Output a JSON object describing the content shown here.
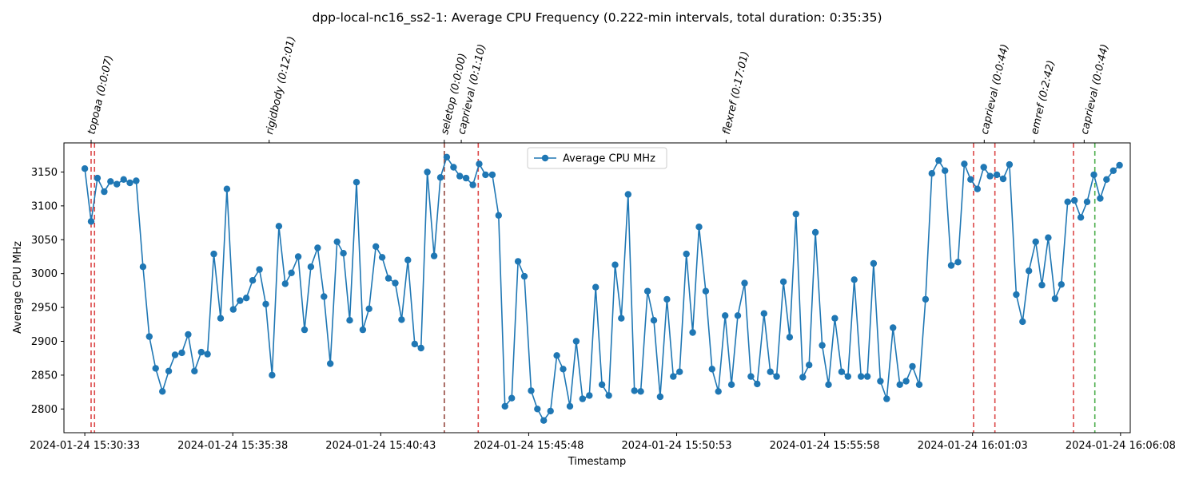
{
  "chart_data": {
    "type": "line",
    "title": "dpp-local-nc16_ss2-1: Average CPU Frequency (0.222-min intervals, total duration: 0:35:35)",
    "xlabel": "Timestamp",
    "ylabel": "Average CPU MHz",
    "x_range": [
      "2024-01-24 15:29:50",
      "2024-01-24 16:06:28"
    ],
    "ylim": [
      2765,
      3193
    ],
    "y_ticks": [
      2800,
      2850,
      2900,
      2950,
      3000,
      3050,
      3100,
      3150
    ],
    "x_ticks": [
      "2024-01-24 15:30:33",
      "2024-01-24 15:35:38",
      "2024-01-24 15:40:43",
      "2024-01-24 15:45:48",
      "2024-01-24 15:50:53",
      "2024-01-24 15:55:58",
      "2024-01-24 16:01:03",
      "2024-01-24 16:06:08"
    ],
    "legend": {
      "entries": [
        "Average CPU MHz"
      ],
      "placement": "upper-center"
    },
    "series": [
      {
        "name": "Average CPU MHz",
        "color": "#1f77b4",
        "points": [
          [
            "2024-01-24 15:30:33",
            3155
          ],
          [
            "2024-01-24 15:30:46",
            3077
          ],
          [
            "2024-01-24 15:30:59",
            3141
          ],
          [
            "2024-01-24 15:31:13",
            3121
          ],
          [
            "2024-01-24 15:31:26",
            3136
          ],
          [
            "2024-01-24 15:31:39",
            3132
          ],
          [
            "2024-01-24 15:31:53",
            3139
          ],
          [
            "2024-01-24 15:32:06",
            3134
          ],
          [
            "2024-01-24 15:32:19",
            3137
          ],
          [
            "2024-01-24 15:32:33",
            3010
          ],
          [
            "2024-01-24 15:32:46",
            2907
          ],
          [
            "2024-01-24 15:32:59",
            2860
          ],
          [
            "2024-01-24 15:33:13",
            2826
          ],
          [
            "2024-01-24 15:33:26",
            2856
          ],
          [
            "2024-01-24 15:33:39",
            2880
          ],
          [
            "2024-01-24 15:33:53",
            2883
          ],
          [
            "2024-01-24 15:34:06",
            2910
          ],
          [
            "2024-01-24 15:34:19",
            2856
          ],
          [
            "2024-01-24 15:34:33",
            2884
          ],
          [
            "2024-01-24 15:34:46",
            2881
          ],
          [
            "2024-01-24 15:34:59",
            3029
          ],
          [
            "2024-01-24 15:35:13",
            2934
          ],
          [
            "2024-01-24 15:35:26",
            3125
          ],
          [
            "2024-01-24 15:35:39",
            2947
          ],
          [
            "2024-01-24 15:35:53",
            2960
          ],
          [
            "2024-01-24 15:36:06",
            2964
          ],
          [
            "2024-01-24 15:36:19",
            2990
          ],
          [
            "2024-01-24 15:36:33",
            3006
          ],
          [
            "2024-01-24 15:36:46",
            2955
          ],
          [
            "2024-01-24 15:36:59",
            2850
          ],
          [
            "2024-01-24 15:37:13",
            3070
          ],
          [
            "2024-01-24 15:37:26",
            2985
          ],
          [
            "2024-01-24 15:37:39",
            3001
          ],
          [
            "2024-01-24 15:37:53",
            3025
          ],
          [
            "2024-01-24 15:38:06",
            2917
          ],
          [
            "2024-01-24 15:38:19",
            3010
          ],
          [
            "2024-01-24 15:38:33",
            3038
          ],
          [
            "2024-01-24 15:38:46",
            2966
          ],
          [
            "2024-01-24 15:38:59",
            2867
          ],
          [
            "2024-01-24 15:39:13",
            3047
          ],
          [
            "2024-01-24 15:39:26",
            3030
          ],
          [
            "2024-01-24 15:39:39",
            2931
          ],
          [
            "2024-01-24 15:39:53",
            3135
          ],
          [
            "2024-01-24 15:40:06",
            2917
          ],
          [
            "2024-01-24 15:40:19",
            2948
          ],
          [
            "2024-01-24 15:40:33",
            3040
          ],
          [
            "2024-01-24 15:40:46",
            3024
          ],
          [
            "2024-01-24 15:40:59",
            2993
          ],
          [
            "2024-01-24 15:41:13",
            2986
          ],
          [
            "2024-01-24 15:41:26",
            2932
          ],
          [
            "2024-01-24 15:41:39",
            3020
          ],
          [
            "2024-01-24 15:41:53",
            2896
          ],
          [
            "2024-01-24 15:42:06",
            2890
          ],
          [
            "2024-01-24 15:42:19",
            3150
          ],
          [
            "2024-01-24 15:42:33",
            3026
          ],
          [
            "2024-01-24 15:42:46",
            3142
          ],
          [
            "2024-01-24 15:42:59",
            3172
          ],
          [
            "2024-01-24 15:43:13",
            3157
          ],
          [
            "2024-01-24 15:43:26",
            3144
          ],
          [
            "2024-01-24 15:43:39",
            3141
          ],
          [
            "2024-01-24 15:43:53",
            3131
          ],
          [
            "2024-01-24 15:44:06",
            3162
          ],
          [
            "2024-01-24 15:44:19",
            3146
          ],
          [
            "2024-01-24 15:44:33",
            3146
          ],
          [
            "2024-01-24 15:44:46",
            3086
          ],
          [
            "2024-01-24 15:44:59",
            2804
          ],
          [
            "2024-01-24 15:45:13",
            2816
          ],
          [
            "2024-01-24 15:45:26",
            3018
          ],
          [
            "2024-01-24 15:45:39",
            2996
          ],
          [
            "2024-01-24 15:45:53",
            2827
          ],
          [
            "2024-01-24 15:46:06",
            2800
          ],
          [
            "2024-01-24 15:46:19",
            2783
          ],
          [
            "2024-01-24 15:46:33",
            2797
          ],
          [
            "2024-01-24 15:46:46",
            2879
          ],
          [
            "2024-01-24 15:46:59",
            2859
          ],
          [
            "2024-01-24 15:47:13",
            2804
          ],
          [
            "2024-01-24 15:47:26",
            2900
          ],
          [
            "2024-01-24 15:47:39",
            2815
          ],
          [
            "2024-01-24 15:47:53",
            2820
          ],
          [
            "2024-01-24 15:48:06",
            2980
          ],
          [
            "2024-01-24 15:48:19",
            2836
          ],
          [
            "2024-01-24 15:48:33",
            2820
          ],
          [
            "2024-01-24 15:48:46",
            3013
          ],
          [
            "2024-01-24 15:48:59",
            2934
          ],
          [
            "2024-01-24 15:49:13",
            3117
          ],
          [
            "2024-01-24 15:49:26",
            2827
          ],
          [
            "2024-01-24 15:49:39",
            2826
          ],
          [
            "2024-01-24 15:49:53",
            2974
          ],
          [
            "2024-01-24 15:50:06",
            2931
          ],
          [
            "2024-01-24 15:50:19",
            2818
          ],
          [
            "2024-01-24 15:50:33",
            2962
          ],
          [
            "2024-01-24 15:50:46",
            2848
          ],
          [
            "2024-01-24 15:50:59",
            2855
          ],
          [
            "2024-01-24 15:51:13",
            3029
          ],
          [
            "2024-01-24 15:51:26",
            2913
          ],
          [
            "2024-01-24 15:51:39",
            3069
          ],
          [
            "2024-01-24 15:51:53",
            2974
          ],
          [
            "2024-01-24 15:52:06",
            2859
          ],
          [
            "2024-01-24 15:52:19",
            2826
          ],
          [
            "2024-01-24 15:52:33",
            2938
          ],
          [
            "2024-01-24 15:52:46",
            2836
          ],
          [
            "2024-01-24 15:52:59",
            2938
          ],
          [
            "2024-01-24 15:53:13",
            2986
          ],
          [
            "2024-01-24 15:53:26",
            2848
          ],
          [
            "2024-01-24 15:53:39",
            2837
          ],
          [
            "2024-01-24 15:53:53",
            2941
          ],
          [
            "2024-01-24 15:54:06",
            2855
          ],
          [
            "2024-01-24 15:54:19",
            2848
          ],
          [
            "2024-01-24 15:54:33",
            2988
          ],
          [
            "2024-01-24 15:54:46",
            2906
          ],
          [
            "2024-01-24 15:54:59",
            3088
          ],
          [
            "2024-01-24 15:55:13",
            2847
          ],
          [
            "2024-01-24 15:55:26",
            2865
          ],
          [
            "2024-01-24 15:55:39",
            3061
          ],
          [
            "2024-01-24 15:55:53",
            2894
          ],
          [
            "2024-01-24 15:56:06",
            2836
          ],
          [
            "2024-01-24 15:56:19",
            2934
          ],
          [
            "2024-01-24 15:56:33",
            2855
          ],
          [
            "2024-01-24 15:56:46",
            2848
          ],
          [
            "2024-01-24 15:56:59",
            2991
          ],
          [
            "2024-01-24 15:57:13",
            2848
          ],
          [
            "2024-01-24 15:57:26",
            2848
          ],
          [
            "2024-01-24 15:57:39",
            3015
          ],
          [
            "2024-01-24 15:57:53",
            2841
          ],
          [
            "2024-01-24 15:58:06",
            2815
          ],
          [
            "2024-01-24 15:58:19",
            2920
          ],
          [
            "2024-01-24 15:58:33",
            2836
          ],
          [
            "2024-01-24 15:58:46",
            2841
          ],
          [
            "2024-01-24 15:58:59",
            2863
          ],
          [
            "2024-01-24 15:59:13",
            2836
          ],
          [
            "2024-01-24 15:59:26",
            2962
          ],
          [
            "2024-01-24 15:59:39",
            3148
          ],
          [
            "2024-01-24 15:59:53",
            3167
          ],
          [
            "2024-01-24 16:00:06",
            3152
          ],
          [
            "2024-01-24 16:00:19",
            3012
          ],
          [
            "2024-01-24 16:00:33",
            3017
          ],
          [
            "2024-01-24 16:00:46",
            3162
          ],
          [
            "2024-01-24 16:00:59",
            3139
          ],
          [
            "2024-01-24 16:01:13",
            3125
          ],
          [
            "2024-01-24 16:01:26",
            3157
          ],
          [
            "2024-01-24 16:01:39",
            3144
          ],
          [
            "2024-01-24 16:01:53",
            3146
          ],
          [
            "2024-01-24 16:02:06",
            3140
          ],
          [
            "2024-01-24 16:02:19",
            3161
          ],
          [
            "2024-01-24 16:02:33",
            2969
          ],
          [
            "2024-01-24 16:02:46",
            2929
          ],
          [
            "2024-01-24 16:02:59",
            3004
          ],
          [
            "2024-01-24 16:03:13",
            3047
          ],
          [
            "2024-01-24 16:03:26",
            2983
          ],
          [
            "2024-01-24 16:03:39",
            3053
          ],
          [
            "2024-01-24 16:03:53",
            2963
          ],
          [
            "2024-01-24 16:04:06",
            2984
          ],
          [
            "2024-01-24 16:04:19",
            3106
          ],
          [
            "2024-01-24 16:04:33",
            3108
          ],
          [
            "2024-01-24 16:04:46",
            3083
          ],
          [
            "2024-01-24 16:04:59",
            3106
          ],
          [
            "2024-01-24 16:05:13",
            3146
          ],
          [
            "2024-01-24 16:05:26",
            3111
          ],
          [
            "2024-01-24 16:05:39",
            3139
          ],
          [
            "2024-01-24 16:05:53",
            3152
          ],
          [
            "2024-01-24 16:06:06",
            3160
          ]
        ]
      }
    ],
    "annotations": [
      {
        "label": "topoaa (0:0:07)",
        "time": "2024-01-24 15:30:46",
        "start": "2024-01-24 15:30:46",
        "end": "2024-01-24 15:30:53",
        "color": "#d62728",
        "end_color": "#d62728"
      },
      {
        "label": "rigidbody (0:12:01)",
        "time": "2024-01-24 15:36:53",
        "start": "2024-01-24 15:30:53",
        "end": "2024-01-24 15:42:54",
        "color": "#d62728",
        "end_color": "#d62728"
      },
      {
        "label": "seletop (0:0:00)",
        "time": "2024-01-24 15:42:54",
        "start": "2024-01-24 15:42:54",
        "end": "2024-01-24 15:42:54",
        "color": "#d62728",
        "end_color": "#8c564b"
      },
      {
        "label": "caprieval (0:1:10)",
        "time": "2024-01-24 15:43:29",
        "start": "2024-01-24 15:42:54",
        "end": "2024-01-24 15:44:04",
        "color": "#8c564b",
        "end_color": "#d62728"
      },
      {
        "label": "flexref (0:17:01)",
        "time": "2024-01-24 15:52:35",
        "start": "2024-01-24 15:44:04",
        "end": "2024-01-24 16:01:05",
        "color": "#d62728",
        "end_color": "#d62728"
      },
      {
        "label": "caprieval (0:0:44)",
        "time": "2024-01-24 16:01:27",
        "start": "2024-01-24 16:01:05",
        "end": "2024-01-24 16:01:49",
        "color": "#d62728",
        "end_color": "#d62728"
      },
      {
        "label": "emref (0:2:42)",
        "time": "2024-01-24 16:03:10",
        "start": "2024-01-24 16:01:49",
        "end": "2024-01-24 16:04:31",
        "color": "#d62728",
        "end_color": "#d62728"
      },
      {
        "label": "caprieval (0:0:44)",
        "time": "2024-01-24 16:04:53",
        "start": "2024-01-24 16:04:31",
        "end": "2024-01-24 16:05:15",
        "color": "#d62728",
        "end_color": "#2ca02c"
      }
    ]
  }
}
